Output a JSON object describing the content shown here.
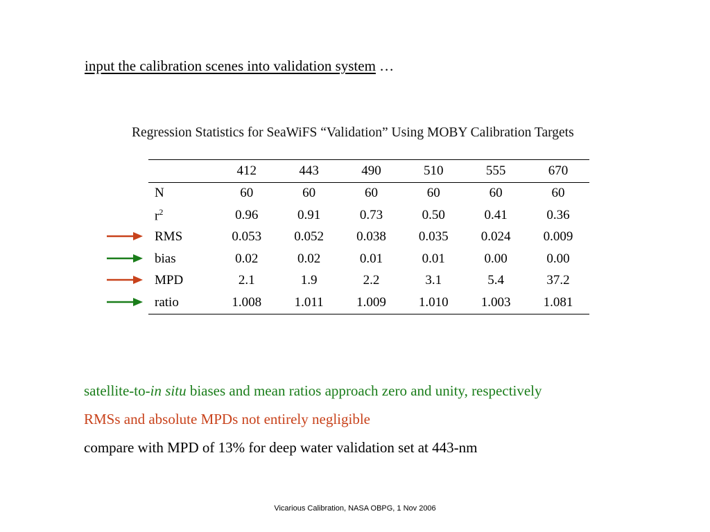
{
  "intro": {
    "link_text": "input the calibration scenes into validation system",
    "trailing": " …"
  },
  "table": {
    "title": "Regression Statistics for SeaWiFS “Validation” Using MOBY Calibration Targets",
    "columns": [
      "412",
      "443",
      "490",
      "510",
      "555",
      "670"
    ],
    "rows": [
      {
        "label": "N",
        "sup": "",
        "values": [
          "60",
          "60",
          "60",
          "60",
          "60",
          "60"
        ],
        "arrow": ""
      },
      {
        "label": "r",
        "sup": "2",
        "values": [
          "0.96",
          "0.91",
          "0.73",
          "0.50",
          "0.41",
          "0.36"
        ],
        "arrow": ""
      },
      {
        "label": "RMS",
        "sup": "",
        "values": [
          "0.053",
          "0.052",
          "0.038",
          "0.035",
          "0.024",
          "0.009"
        ],
        "arrow": "orange"
      },
      {
        "label": "bias",
        "sup": "",
        "values": [
          "0.02",
          "0.02",
          "0.01",
          "0.01",
          "0.00",
          "0.00"
        ],
        "arrow": "green"
      },
      {
        "label": "MPD",
        "sup": "",
        "values": [
          "2.1",
          "1.9",
          "2.2",
          "3.1",
          "5.4",
          "37.2"
        ],
        "arrow": "orange"
      },
      {
        "label": "ratio",
        "sup": "",
        "values": [
          "1.008",
          "1.011",
          "1.009",
          "1.010",
          "1.003",
          "1.081"
        ],
        "arrow": "green"
      }
    ]
  },
  "colors": {
    "green": "#1a7d1a",
    "orange": "#c8421b"
  },
  "bullets": {
    "green_pre": "satellite-to-",
    "green_italic": "in situ",
    "green_post": " biases and mean ratios approach zero and unity, respectively",
    "orange": "RMSs and absolute MPDs not entirely negligible",
    "black": "compare with MPD of 13% for deep water validation set at 443-nm"
  },
  "footer": "Vicarious Calibration, NASA OBPG, 1 Nov 2006"
}
